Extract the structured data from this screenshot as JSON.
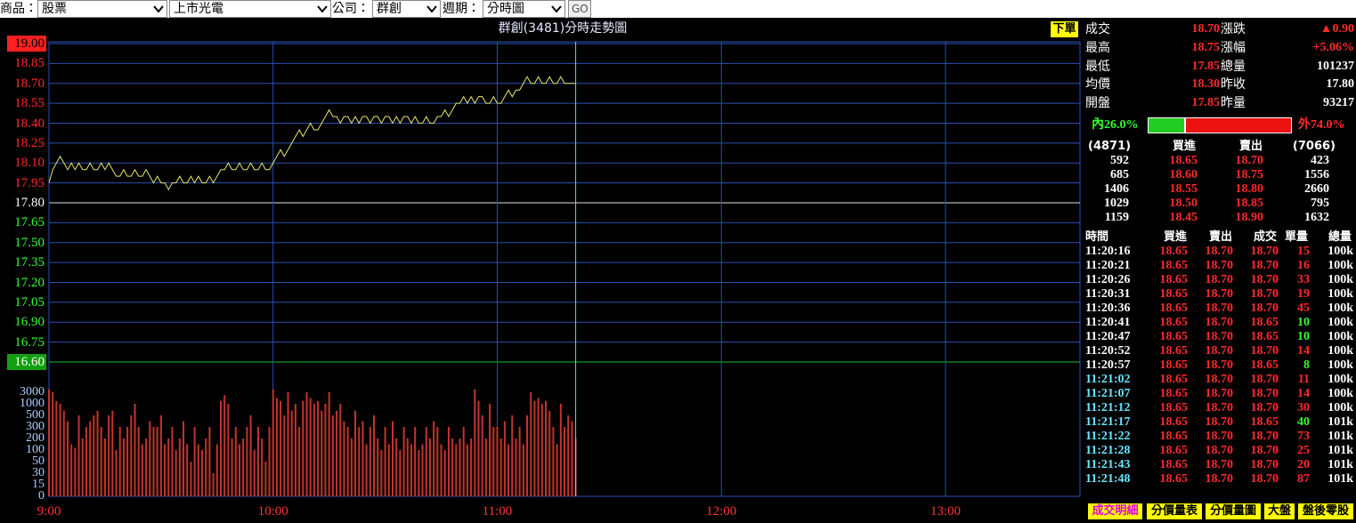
{
  "toolbar": {
    "product_label": "商品：",
    "product": "股票",
    "category": "上市光電",
    "company_label": "公司：",
    "company": "群創",
    "period_label": "週期：",
    "period": "分時圖",
    "go": "GO"
  },
  "chart_data": {
    "type": "line",
    "title": "群創(3481)分時走勢圖",
    "color": "#e6e66a",
    "reference": 17.8,
    "grid": true,
    "x": [
      "9:00",
      "9:01",
      "9:02",
      "9:03",
      "9:04",
      "9:05",
      "9:06",
      "9:07",
      "9:08",
      "9:09",
      "9:10",
      "9:11",
      "9:12",
      "9:13",
      "9:14",
      "9:15",
      "9:16",
      "9:17",
      "9:18",
      "9:19",
      "9:20",
      "9:21",
      "9:22",
      "9:23",
      "9:24",
      "9:25",
      "9:26",
      "9:27",
      "9:28",
      "9:29",
      "9:30",
      "9:31",
      "9:32",
      "9:33",
      "9:34",
      "9:35",
      "9:36",
      "9:37",
      "9:38",
      "9:39",
      "9:40",
      "9:41",
      "9:42",
      "9:43",
      "9:44",
      "9:45",
      "9:46",
      "9:47",
      "9:48",
      "9:49",
      "9:50",
      "9:51",
      "9:52",
      "9:53",
      "9:54",
      "9:55",
      "9:56",
      "9:57",
      "9:58",
      "9:59",
      "10:00",
      "10:01",
      "10:02",
      "10:03",
      "10:04",
      "10:05",
      "10:06",
      "10:07",
      "10:08",
      "10:09",
      "10:10",
      "10:11",
      "10:12",
      "10:13",
      "10:14",
      "10:15",
      "10:16",
      "10:17",
      "10:18",
      "10:19",
      "10:20",
      "10:21",
      "10:22",
      "10:23",
      "10:24",
      "10:25",
      "10:26",
      "10:27",
      "10:28",
      "10:29",
      "10:30",
      "10:31",
      "10:32",
      "10:33",
      "10:34",
      "10:35",
      "10:36",
      "10:37",
      "10:38",
      "10:39",
      "10:40",
      "10:41",
      "10:42",
      "10:43",
      "10:44",
      "10:45",
      "10:46",
      "10:47",
      "10:48",
      "10:49",
      "10:50",
      "10:51",
      "10:52",
      "10:53",
      "10:54",
      "10:55",
      "10:56",
      "10:57",
      "10:58",
      "10:59",
      "11:00",
      "11:01",
      "11:02",
      "11:03",
      "11:04",
      "11:05",
      "11:06",
      "11:07",
      "11:08",
      "11:09",
      "11:10",
      "11:11",
      "11:12",
      "11:13",
      "11:14",
      "11:15",
      "11:16",
      "11:17",
      "11:18",
      "11:19",
      "11:20",
      "11:21"
    ],
    "values": [
      17.95,
      18.05,
      18.1,
      18.15,
      18.1,
      18.05,
      18.1,
      18.05,
      18.1,
      18.05,
      18.05,
      18.1,
      18.05,
      18.05,
      18.1,
      18.05,
      18.1,
      18.05,
      18.0,
      18.0,
      18.05,
      18.0,
      18.0,
      18.05,
      18.0,
      18.0,
      18.05,
      18.0,
      17.95,
      18.0,
      17.95,
      17.95,
      17.9,
      17.95,
      17.95,
      18.0,
      17.95,
      17.95,
      18.0,
      17.95,
      18.0,
      17.95,
      17.95,
      18.0,
      17.95,
      18.0,
      18.05,
      18.05,
      18.1,
      18.05,
      18.05,
      18.1,
      18.05,
      18.05,
      18.1,
      18.05,
      18.05,
      18.1,
      18.05,
      18.05,
      18.1,
      18.15,
      18.2,
      18.15,
      18.2,
      18.25,
      18.3,
      18.35,
      18.3,
      18.35,
      18.4,
      18.35,
      18.35,
      18.4,
      18.45,
      18.5,
      18.45,
      18.45,
      18.4,
      18.45,
      18.45,
      18.4,
      18.45,
      18.4,
      18.45,
      18.45,
      18.4,
      18.45,
      18.45,
      18.4,
      18.45,
      18.45,
      18.4,
      18.45,
      18.4,
      18.45,
      18.45,
      18.4,
      18.45,
      18.4,
      18.4,
      18.45,
      18.4,
      18.4,
      18.45,
      18.45,
      18.5,
      18.45,
      18.5,
      18.55,
      18.55,
      18.6,
      18.55,
      18.6,
      18.55,
      18.6,
      18.6,
      18.55,
      18.55,
      18.6,
      18.55,
      18.55,
      18.6,
      18.65,
      18.6,
      18.65,
      18.65,
      18.7,
      18.75,
      18.7,
      18.7,
      18.75,
      18.7,
      18.7,
      18.75,
      18.7,
      18.7,
      18.75,
      18.7,
      18.7,
      18.7,
      18.7
    ],
    "xlim": [
      "9:00",
      "13:36"
    ],
    "xticks": [
      "9:00",
      "10:00",
      "11:00",
      "12:00",
      "13:00"
    ],
    "ylim": [
      16.6,
      19.0
    ],
    "yticks": [
      {
        "value": 19.0,
        "label": "19.00"
      },
      {
        "value": 18.85,
        "label": "18.85"
      },
      {
        "value": 18.7,
        "label": "18.70"
      },
      {
        "value": 18.55,
        "label": "18.55"
      },
      {
        "value": 18.4,
        "label": "18.40"
      },
      {
        "value": 18.25,
        "label": "18.25"
      },
      {
        "value": 18.1,
        "label": "18.10"
      },
      {
        "value": 17.95,
        "label": "17.95"
      },
      {
        "value": 17.8,
        "label": "17.80"
      },
      {
        "value": 17.65,
        "label": "17.65"
      },
      {
        "value": 17.5,
        "label": "17.50"
      },
      {
        "value": 17.35,
        "label": "17.35"
      },
      {
        "value": 17.2,
        "label": "17.20"
      },
      {
        "value": 17.05,
        "label": "17.05"
      },
      {
        "value": 16.9,
        "label": "16.90"
      },
      {
        "value": 16.75,
        "label": "16.75"
      },
      {
        "value": 16.6,
        "label": "16.60"
      }
    ],
    "volume": {
      "type": "bar",
      "color": "#c4342c",
      "values": [
        3500,
        3000,
        1500,
        1000,
        700,
        400,
        150,
        120,
        500,
        200,
        300,
        400,
        500,
        700,
        300,
        200,
        500,
        700,
        100,
        300,
        200,
        300,
        500,
        1000,
        300,
        150,
        200,
        400,
        300,
        300,
        500,
        150,
        200,
        300,
        100,
        200,
        400,
        150,
        50,
        300,
        150,
        100,
        200,
        300,
        30,
        150,
        1500,
        2500,
        1000,
        200,
        300,
        150,
        200,
        300,
        500,
        100,
        300,
        200,
        50,
        300,
        3500,
        2000,
        1500,
        500,
        3000,
        700,
        1000,
        300,
        1500,
        3000,
        2000,
        1000,
        1500,
        700,
        1000,
        3000,
        500,
        700,
        1000,
        400,
        300,
        200,
        700,
        300,
        400,
        150,
        300,
        500,
        200,
        100,
        300,
        150,
        400,
        200,
        100,
        300,
        200,
        150,
        300,
        100,
        150,
        300,
        200,
        400,
        300,
        150,
        100,
        300,
        200,
        150,
        200,
        300,
        150,
        200,
        3500,
        1500,
        500,
        200,
        1000,
        300,
        300,
        200,
        400,
        150,
        500,
        200,
        300,
        150,
        500,
        3000,
        1500,
        2000,
        1000,
        1500,
        700,
        300,
        150,
        1000,
        300,
        500,
        400,
        200
      ],
      "yticks": [
        3000,
        1000,
        500,
        300,
        200,
        100,
        50,
        30,
        15,
        0
      ]
    }
  },
  "quote": {
    "order": "下單",
    "rows": [
      [
        "成交",
        "18.70",
        "漲跌",
        "▲0.90"
      ],
      [
        "最高",
        "18.75",
        "漲幅",
        "+5.06%"
      ],
      [
        "最低",
        "17.85",
        "總量",
        "101237"
      ],
      [
        "均價",
        "18.30",
        "昨收",
        "17.80"
      ],
      [
        "開盤",
        "17.85",
        "昨量",
        "93217"
      ]
    ]
  },
  "ratio": {
    "inner_label": "內26.0%",
    "inner": 26.0,
    "outer_label": "外74.0%",
    "outer": 74.0
  },
  "order_book": {
    "header": [
      "(4871)",
      "買進",
      "賣出",
      "(7066)"
    ],
    "rows": [
      [
        "592",
        "18.65",
        "18.70",
        "423"
      ],
      [
        "685",
        "18.60",
        "18.75",
        "1556"
      ],
      [
        "1406",
        "18.55",
        "18.80",
        "2660"
      ],
      [
        "1029",
        "18.50",
        "18.85",
        "795"
      ],
      [
        "1159",
        "18.45",
        "18.90",
        "1632"
      ]
    ]
  },
  "trades": {
    "header": [
      "時間",
      "買進",
      "賣出",
      "成交",
      "單量",
      "總量"
    ],
    "rows": [
      [
        "11:20:16",
        "18.65",
        "18.70",
        "18.70",
        "15",
        "100k"
      ],
      [
        "11:20:21",
        "18.65",
        "18.70",
        "18.70",
        "16",
        "100k"
      ],
      [
        "11:20:26",
        "18.65",
        "18.70",
        "18.70",
        "33",
        "100k"
      ],
      [
        "11:20:31",
        "18.65",
        "18.70",
        "18.70",
        "19",
        "100k"
      ],
      [
        "11:20:36",
        "18.65",
        "18.70",
        "18.70",
        "45",
        "100k"
      ],
      [
        "11:20:41",
        "18.65",
        "18.70",
        "18.65",
        "10",
        "100k"
      ],
      [
        "11:20:47",
        "18.65",
        "18.70",
        "18.65",
        "10",
        "100k"
      ],
      [
        "11:20:52",
        "18.65",
        "18.70",
        "18.70",
        "14",
        "100k"
      ],
      [
        "11:20:57",
        "18.65",
        "18.70",
        "18.65",
        "8",
        "100k"
      ],
      [
        "11:21:02",
        "18.65",
        "18.70",
        "18.70",
        "11",
        "100k"
      ],
      [
        "11:21:07",
        "18.65",
        "18.70",
        "18.70",
        "14",
        "100k"
      ],
      [
        "11:21:12",
        "18.65",
        "18.70",
        "18.70",
        "30",
        "100k"
      ],
      [
        "11:21:17",
        "18.65",
        "18.70",
        "18.65",
        "40",
        "101k"
      ],
      [
        "11:21:22",
        "18.65",
        "18.70",
        "18.70",
        "73",
        "101k"
      ],
      [
        "11:21:28",
        "18.65",
        "18.70",
        "18.70",
        "25",
        "101k"
      ],
      [
        "11:21:43",
        "18.65",
        "18.70",
        "18.70",
        "20",
        "101k"
      ],
      [
        "11:21:48",
        "18.65",
        "18.70",
        "18.70",
        "87",
        "101k"
      ]
    ]
  },
  "buttons": [
    "成交明細",
    "分價量表",
    "分價量圖",
    "大盤",
    "盤後零股"
  ]
}
